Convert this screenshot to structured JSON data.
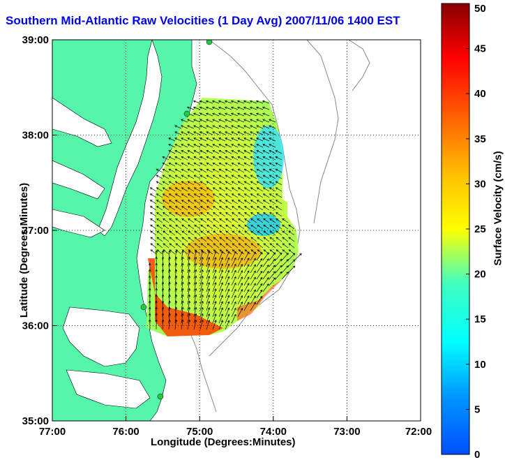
{
  "title": "Southern Mid-Atlantic Raw Velocities (1 Day Avg) 2007/11/06 1400 EST",
  "chart_data": {
    "type": "heatmap",
    "title": "Southern Mid-Atlantic Raw Velocities (1 Day Avg) 2007/11/06 1400 EST",
    "xlabel": "Longitude (Degrees:Minutes)",
    "ylabel": "Latitude (Degrees:Minutes)",
    "x_ticks": [
      "77:00",
      "76:00",
      "75:00",
      "74:00",
      "73:00",
      "72:00"
    ],
    "y_ticks": [
      "39:00",
      "38:00",
      "37:00",
      "36:00",
      "35:00"
    ],
    "xlim": [
      -77,
      -72
    ],
    "ylim": [
      35,
      39
    ],
    "grid": true,
    "colorbar": {
      "label": "Surface Velocity (cm/s)",
      "range": [
        0,
        50
      ],
      "ticks": [
        "50",
        "45",
        "40",
        "35",
        "30",
        "25",
        "20",
        "15",
        "10",
        "5",
        "0"
      ],
      "colormap": "jet"
    },
    "colors": {
      "land": "#55f5aa",
      "water": "#ffffff",
      "title": "#0000ee",
      "arrows": "#000000",
      "stations": "#22cc44"
    }
  }
}
